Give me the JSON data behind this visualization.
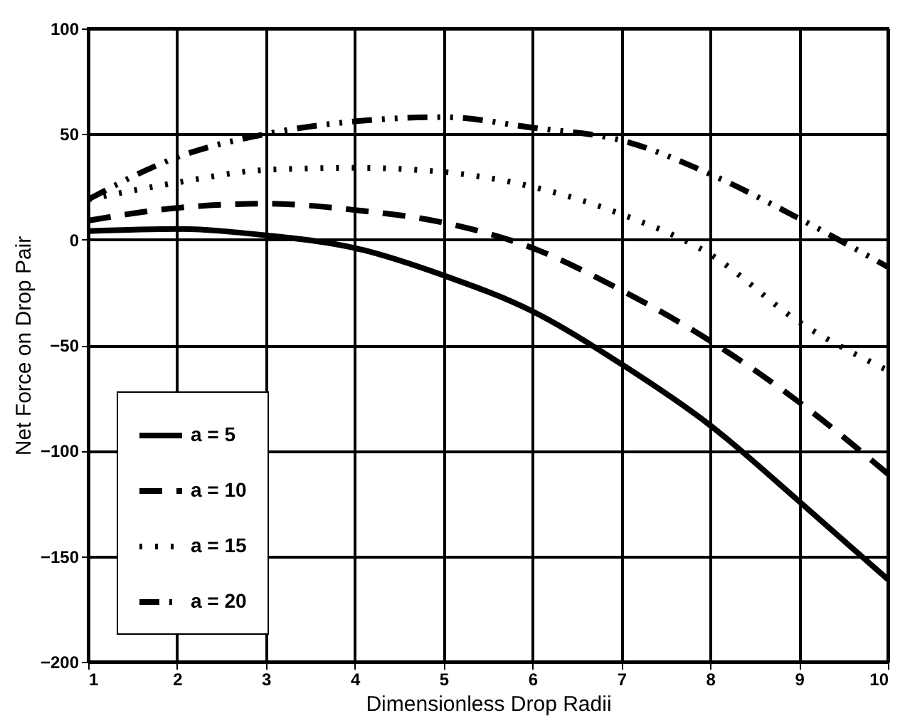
{
  "chart_data": {
    "type": "line",
    "xlabel": "Dimensionless Drop Radii",
    "ylabel": "Net Force on Drop Pair",
    "x": [
      1,
      2,
      3,
      4,
      5,
      6,
      7,
      8,
      9,
      10
    ],
    "series": [
      {
        "name": "a = 5",
        "color": "#000000",
        "line_style": "solid",
        "values": [
          4,
          5,
          2,
          -4,
          -17,
          -34,
          -59,
          -88,
          -124,
          -161
        ]
      },
      {
        "name": "a = 10",
        "color": "#000000",
        "line_style": "dashed",
        "values": [
          9,
          15,
          17,
          14,
          8,
          -4,
          -24,
          -48,
          -77,
          -111
        ]
      },
      {
        "name": "a = 15",
        "color": "#000000",
        "line_style": "dotted",
        "values": [
          19,
          27,
          33,
          34,
          32,
          25,
          12,
          -7,
          -39,
          -62
        ]
      },
      {
        "name": "a = 20",
        "color": "#000000",
        "line_style": "dashdot",
        "values": [
          19,
          39,
          50,
          56,
          58,
          53,
          47,
          31,
          10,
          -13
        ]
      }
    ],
    "xlim": [
      1,
      10
    ],
    "xticks": [
      1,
      2,
      3,
      4,
      5,
      6,
      7,
      8,
      9,
      10
    ],
    "ylim": [
      -200,
      100
    ],
    "yticks": [
      -200,
      -150,
      -100,
      -50,
      0,
      50,
      100
    ],
    "grid": true,
    "legend": "bottom left",
    "marker": "none"
  }
}
